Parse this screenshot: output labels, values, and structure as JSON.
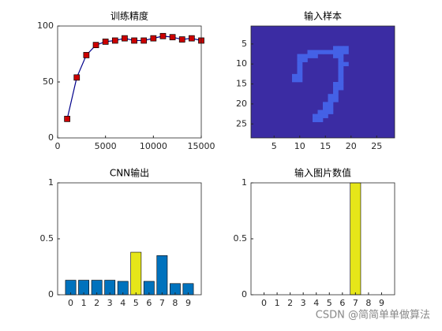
{
  "chart_data": [
    {
      "type": "line",
      "title": "训练精度",
      "x": [
        1000,
        2000,
        3000,
        4000,
        5000,
        6000,
        7000,
        8000,
        9000,
        10000,
        11000,
        12000,
        13000,
        14000,
        15000
      ],
      "values": [
        17,
        54,
        74,
        83,
        86,
        87,
        89,
        87,
        87,
        89,
        91,
        90,
        88,
        89,
        87
      ],
      "color": "#00008b",
      "marker_color": "#cc0000",
      "xlim": [
        0,
        15000
      ],
      "ylim": [
        0,
        100
      ],
      "xticks": [
        0,
        5000,
        10000,
        15000
      ],
      "yticks": [
        0,
        50,
        100
      ]
    },
    {
      "type": "image",
      "title": "输入样本",
      "cells": [
        [
          17,
          6
        ],
        [
          18,
          6
        ],
        [
          19,
          6
        ],
        [
          12,
          7
        ],
        [
          13,
          7
        ],
        [
          14,
          7
        ],
        [
          15,
          7
        ],
        [
          16,
          7
        ],
        [
          17,
          7
        ],
        [
          18,
          7
        ],
        [
          19,
          7
        ],
        [
          10,
          8
        ],
        [
          11,
          8
        ],
        [
          12,
          8
        ],
        [
          13,
          8
        ],
        [
          17,
          8
        ],
        [
          18,
          8
        ],
        [
          10,
          9
        ],
        [
          11,
          9
        ],
        [
          18,
          9
        ],
        [
          10,
          10
        ],
        [
          18,
          10
        ],
        [
          19,
          10
        ],
        [
          10,
          11
        ],
        [
          18,
          11
        ],
        [
          10,
          12
        ],
        [
          18,
          12
        ],
        [
          9,
          13
        ],
        [
          10,
          13
        ],
        [
          18,
          13
        ],
        [
          9,
          14
        ],
        [
          10,
          14
        ],
        [
          18,
          14
        ],
        [
          17,
          15
        ],
        [
          18,
          15
        ],
        [
          17,
          16
        ],
        [
          18,
          16
        ],
        [
          17,
          17
        ],
        [
          16,
          18
        ],
        [
          17,
          18
        ],
        [
          16,
          19
        ],
        [
          17,
          19
        ],
        [
          15,
          20
        ],
        [
          16,
          20
        ],
        [
          15,
          21
        ],
        [
          16,
          21
        ],
        [
          14,
          22
        ],
        [
          15,
          22
        ],
        [
          16,
          22
        ],
        [
          13,
          23
        ],
        [
          14,
          23
        ],
        [
          15,
          23
        ],
        [
          13,
          24
        ],
        [
          14,
          24
        ]
      ],
      "background": "#3b2ca3",
      "color": "#4461e6",
      "y_reversed": true,
      "xlim": [
        0.5,
        28.5
      ],
      "ylim": [
        0.5,
        28.5
      ],
      "xticks": [
        5,
        10,
        15,
        20,
        25
      ],
      "yticks": [
        5,
        10,
        15,
        20,
        25
      ]
    },
    {
      "type": "bar",
      "title": "CNN输出",
      "x": [
        0,
        1,
        2,
        3,
        4,
        5,
        6,
        7,
        8,
        9
      ],
      "values": [
        0.13,
        0.13,
        0.13,
        0.13,
        0.12,
        0.38,
        0.12,
        0.35,
        0.1,
        0.1
      ],
      "colors": [
        "#0072bd",
        "#0072bd",
        "#0072bd",
        "#0072bd",
        "#0072bd",
        "#e6e619",
        "#0072bd",
        "#0072bd",
        "#0072bd",
        "#0072bd"
      ],
      "xlim": [
        -1,
        10
      ],
      "ylim": [
        0,
        1
      ],
      "xticks": [
        0,
        1,
        2,
        3,
        4,
        5,
        6,
        7,
        8,
        9
      ],
      "yticks": [
        0,
        0.5,
        1
      ]
    },
    {
      "type": "bar",
      "title": "输入图片数值",
      "x": [
        0,
        1,
        2,
        3,
        4,
        5,
        6,
        7,
        8,
        9
      ],
      "values": [
        0,
        0,
        0,
        0,
        0,
        0,
        0,
        1,
        0,
        0
      ],
      "colors": [
        "#e6e619",
        "#e6e619",
        "#e6e619",
        "#e6e619",
        "#e6e619",
        "#e6e619",
        "#e6e619",
        "#e6e619",
        "#e6e619",
        "#e6e619"
      ],
      "xlim": [
        -1,
        10
      ],
      "ylim": [
        0,
        1
      ],
      "xticks": [
        0,
        1,
        2,
        3,
        4,
        5,
        6,
        7,
        8,
        9
      ],
      "yticks": [
        0,
        0.5,
        1
      ]
    }
  ],
  "watermark": "CSDN @简简单单做算法"
}
